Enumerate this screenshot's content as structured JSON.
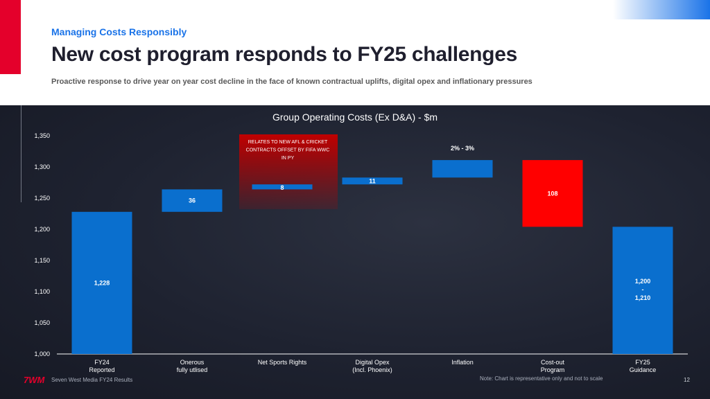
{
  "header": {
    "kicker": "Managing Costs Responsibly",
    "title": "New cost program responds to FY25 challenges",
    "subtitle": "Proactive response to drive year on year cost decline in the face of known contractual uplifts, digital opex and inflationary pressures"
  },
  "chart_data": {
    "type": "bar",
    "subtype": "waterfall",
    "title": "Group Operating Costs (Ex D&A) - $m",
    "ylim": [
      1000,
      1350
    ],
    "yticks": [
      1000,
      1050,
      1100,
      1150,
      1200,
      1250,
      1300,
      1350
    ],
    "ytick_labels": [
      "1,000",
      "1,050",
      "1,100",
      "1,150",
      "1,200",
      "1,250",
      "1,300",
      "1,350"
    ],
    "grid": false,
    "categories": [
      [
        "FY24",
        "Reported"
      ],
      [
        "Onerous",
        "fully utlised"
      ],
      [
        "Net Sports Rights"
      ],
      [
        "Digital Opex",
        "(Incl. Phoenix)"
      ],
      [
        "Inflation"
      ],
      [
        "Cost-out",
        "Program"
      ],
      [
        "FY25",
        "Guidance"
      ]
    ],
    "bars": [
      {
        "start": 1000,
        "end": 1228,
        "color": "#0a6fce",
        "label": [
          "1,228"
        ],
        "label_pos": "mid"
      },
      {
        "start": 1228,
        "end": 1264,
        "color": "#0a6fce",
        "label": [
          "36"
        ],
        "label_pos": "mid"
      },
      {
        "start": 1264,
        "end": 1272,
        "color": "#0a6fce",
        "label": [
          "8"
        ],
        "label_pos": "top"
      },
      {
        "start": 1272,
        "end": 1283,
        "color": "#0a6fce",
        "label": [
          "11"
        ],
        "label_pos": "mid"
      },
      {
        "start": 1283,
        "end": 1311,
        "color": "#0a6fce",
        "label": [
          "2% - 3%"
        ],
        "label_pos": "above"
      },
      {
        "start": 1311,
        "end": 1204,
        "color": "#ff0000",
        "label": [
          "108"
        ],
        "label_pos": "mid"
      },
      {
        "start": 1000,
        "end": 1204,
        "color": "#0a6fce",
        "label": [
          "1,200",
          "-",
          "1,210"
        ],
        "label_pos": "mid"
      }
    ],
    "annotation": {
      "lines": [
        "RELATES TO NEW AFL & CRICKET",
        "CONTRACTS OFFSET BY FIFA WWC",
        "IN PY"
      ],
      "target_index": 2
    }
  },
  "footer": {
    "logo": "7WM",
    "company": "Seven West Media  FY24 Results",
    "note": "Note: Chart is representative only and not to scale",
    "page": "12"
  },
  "colors": {
    "accent_red": "#e4002b",
    "accent_blue": "#1a73e8",
    "bar_blue": "#0a6fce",
    "bar_red": "#ff0000",
    "panel_bg": "#1e2230"
  }
}
